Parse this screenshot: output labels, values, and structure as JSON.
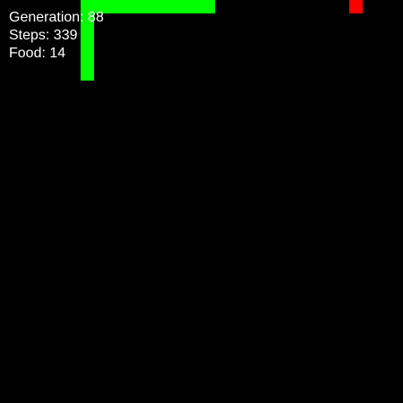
{
  "hud": {
    "generation": "Generation: 88",
    "steps": "Steps: 339",
    "food": "Food: 14"
  },
  "game": {
    "grid_cols": 30,
    "grid_rows": 30,
    "snake_cells": [
      [
        6,
        5
      ],
      [
        6,
        4
      ],
      [
        6,
        3
      ],
      [
        6,
        2
      ],
      [
        6,
        1
      ],
      [
        6,
        0
      ],
      [
        7,
        0
      ],
      [
        8,
        0
      ],
      [
        9,
        0
      ],
      [
        10,
        0
      ],
      [
        11,
        0
      ],
      [
        12,
        0
      ],
      [
        13,
        0
      ],
      [
        14,
        0
      ],
      [
        15,
        0
      ]
    ],
    "food_cell": [
      26,
      0
    ],
    "colors": {
      "background": "#000000",
      "snake": "#00ff00",
      "food": "#ff0000",
      "text": "#ffffff"
    }
  }
}
